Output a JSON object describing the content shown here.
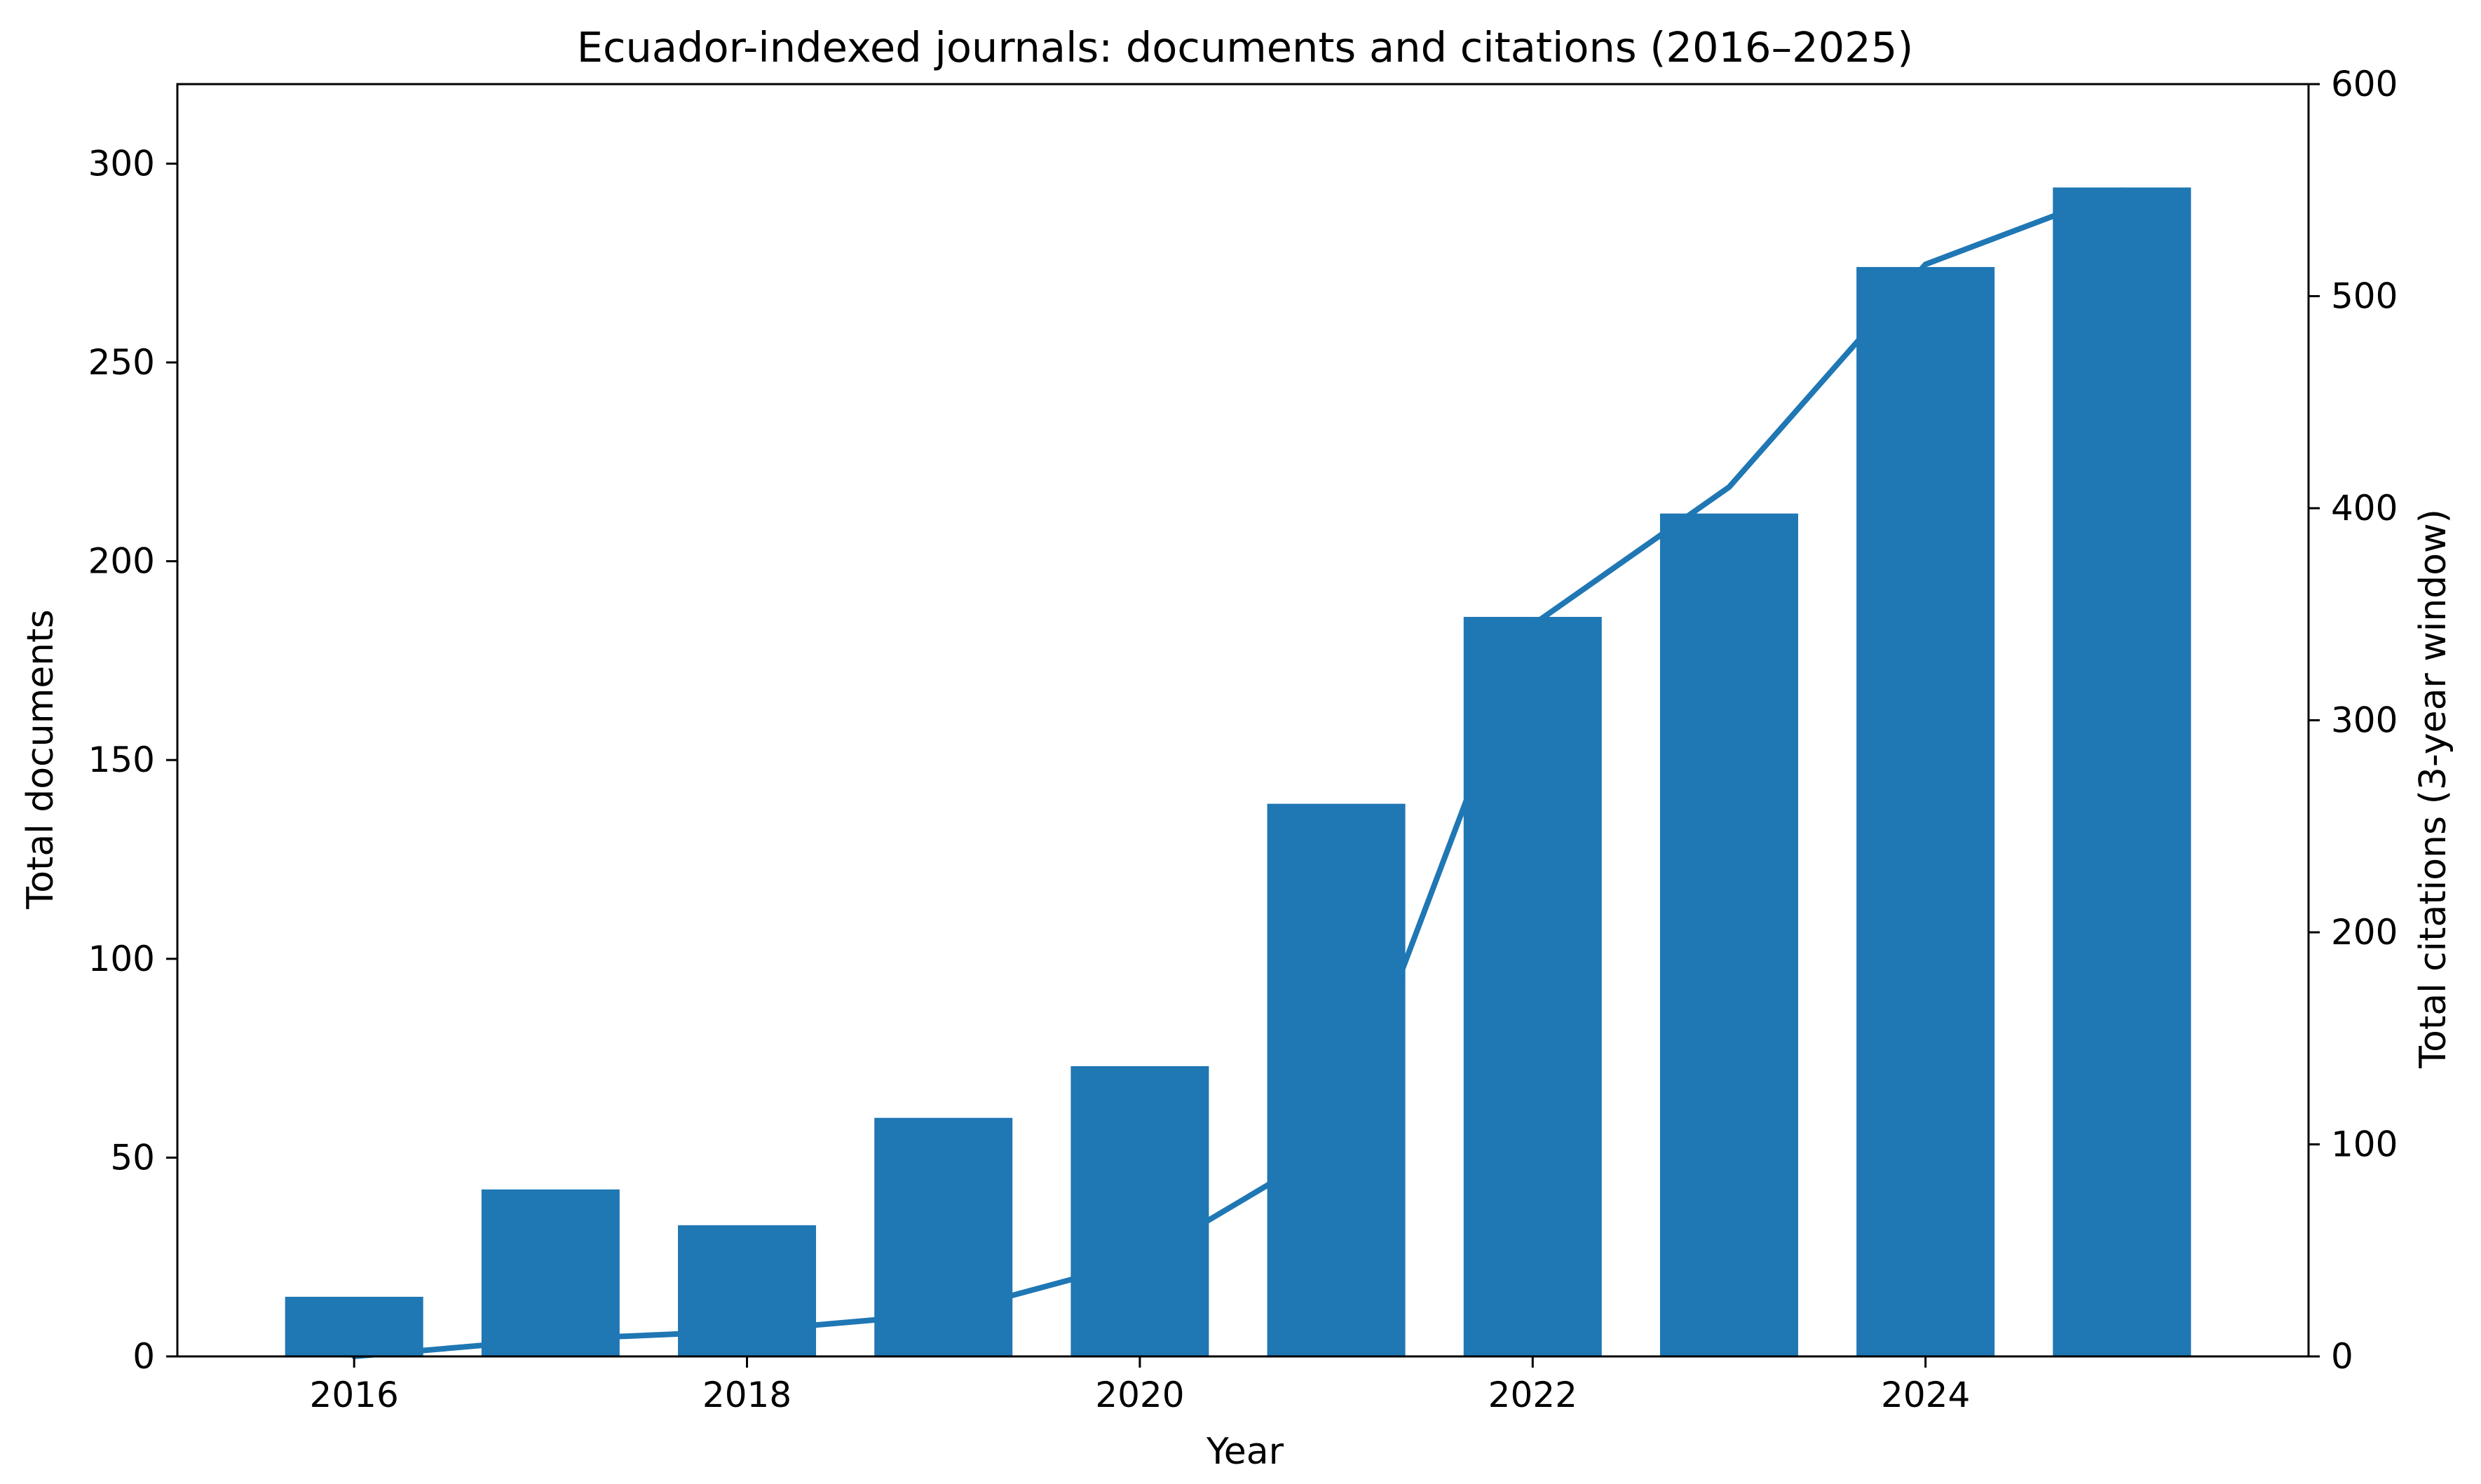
{
  "chart_data": {
    "type": "bar",
    "title": "Ecuador-indexed journals: documents and citations (2016–2025)",
    "xlabel": "Year",
    "ylabel": "Total documents",
    "y2label": "Total citations (3-year window)",
    "x": [
      2016,
      2017,
      2018,
      2019,
      2020,
      2021,
      2022,
      2023,
      2024,
      2025
    ],
    "xticks": [
      2016,
      2018,
      2020,
      2022,
      2024
    ],
    "yticks": [
      0,
      50,
      100,
      150,
      200,
      250,
      300
    ],
    "y2ticks": [
      0,
      100,
      200,
      300,
      400,
      500,
      600
    ],
    "ylim": [
      0,
      320
    ],
    "y2lim": [
      0,
      600
    ],
    "xlim": [
      2015.1,
      2025.95
    ],
    "grid": false,
    "legend": "none",
    "colors": {
      "bar": "#1f77b4",
      "line": "#1f77b4"
    },
    "series": [
      {
        "type": "bar",
        "axis": "left",
        "values": [
          15,
          42,
          33,
          60,
          73,
          139,
          186,
          212,
          274,
          294
        ]
      },
      {
        "type": "line",
        "axis": "right",
        "values": [
          0,
          8,
          12,
          20,
          45,
          100,
          345,
          410,
          515,
          550
        ]
      }
    ]
  }
}
